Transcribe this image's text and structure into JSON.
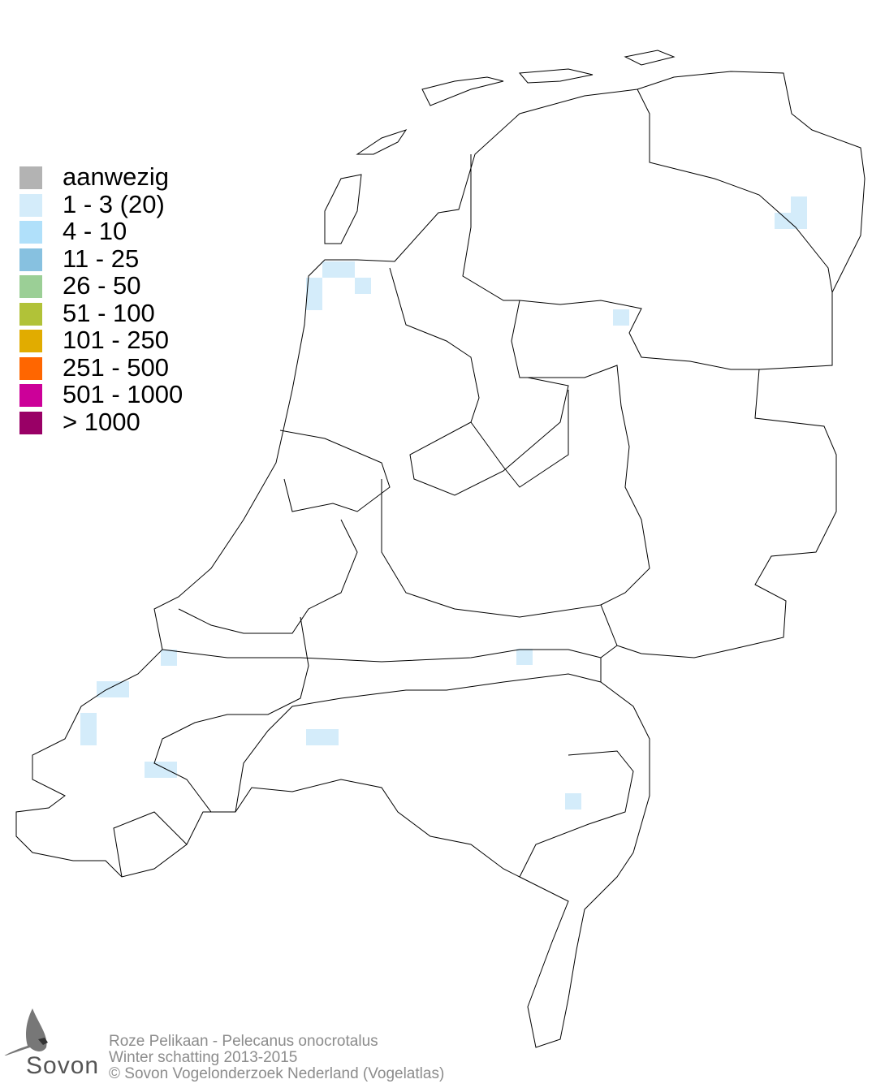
{
  "legend": {
    "items": [
      {
        "label": "aanwezig",
        "color": "#b3b3b3"
      },
      {
        "label": "1 - 3 (20)",
        "color": "#d4ecfa"
      },
      {
        "label": "4 - 10",
        "color": "#b0e0fa"
      },
      {
        "label": "11 - 25",
        "color": "#87c1e0"
      },
      {
        "label": "26 - 50",
        "color": "#9bcf96"
      },
      {
        "label": "51 - 100",
        "color": "#b1c238"
      },
      {
        "label": "101 - 250",
        "color": "#e1ac00"
      },
      {
        "label": "251 - 500",
        "color": "#ff6600"
      },
      {
        "label": "501 - 1000",
        "color": "#cc0099"
      },
      {
        "label": "> 1000",
        "color": "#990066"
      }
    ]
  },
  "footer": {
    "species": "Roze Pelikaan - Pelecanus onocrotalus",
    "period": "Winter schatting 2013-2015",
    "copyright": "© Sovon Vogelonderzoek Nederland (Vogelatlas)"
  },
  "logo": {
    "text": "Sovon"
  }
}
